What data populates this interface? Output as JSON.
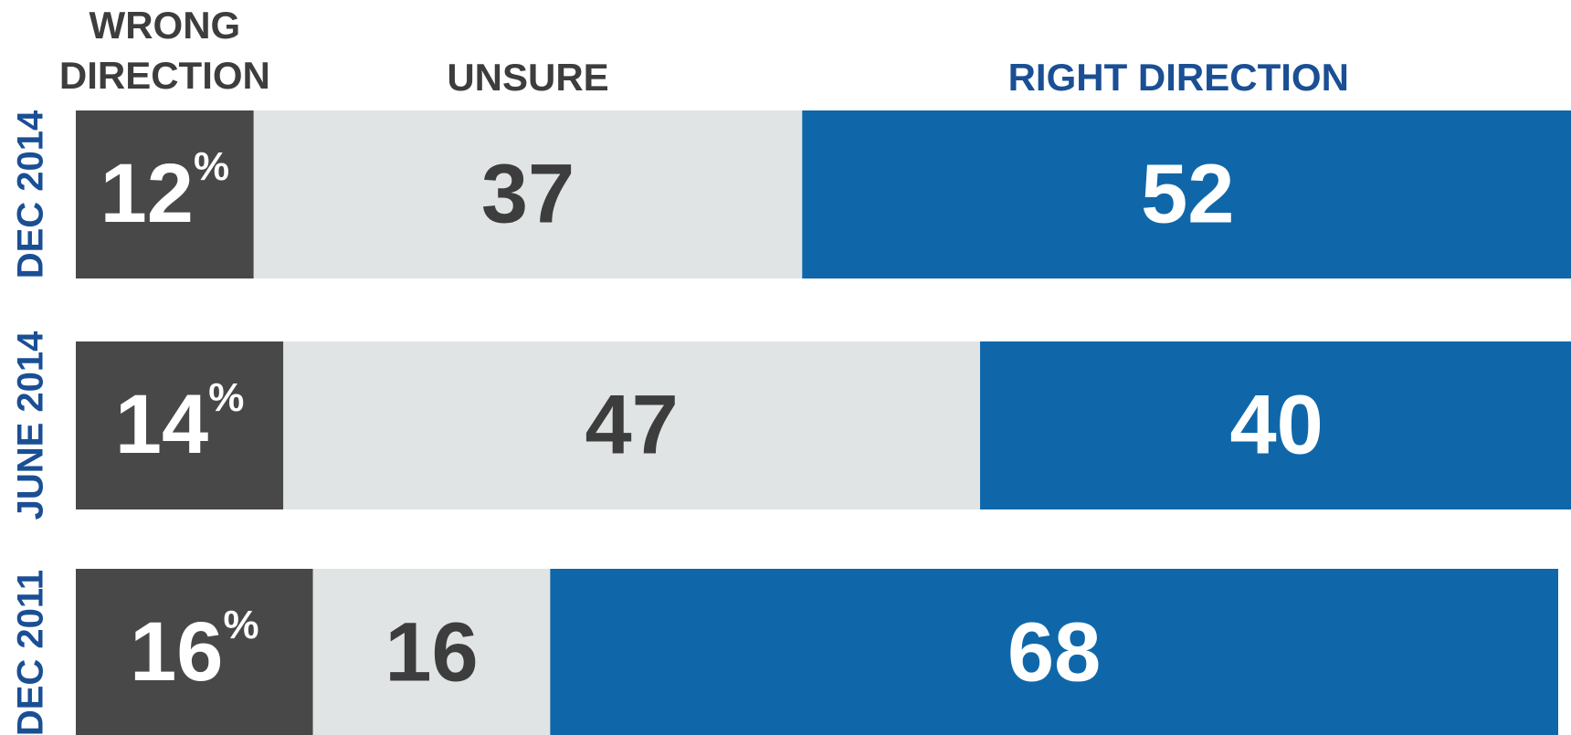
{
  "chart_data": {
    "type": "stacked-bar",
    "orientation": "horizontal",
    "categories": [
      "DEC 2014",
      "JUNE 2014",
      "DEC 2011"
    ],
    "series": [
      {
        "name": "WRONG DIRECTION",
        "color": "#484848",
        "values": [
          12,
          14,
          16
        ],
        "value_labels": [
          "12%",
          "14%",
          "16%"
        ]
      },
      {
        "name": "UNSURE",
        "color": "#e1e4e5",
        "values": [
          37,
          47,
          16
        ]
      },
      {
        "name": "RIGHT DIRECTION",
        "color": "#0f67a9",
        "values": [
          52,
          40,
          68
        ]
      }
    ]
  }
}
